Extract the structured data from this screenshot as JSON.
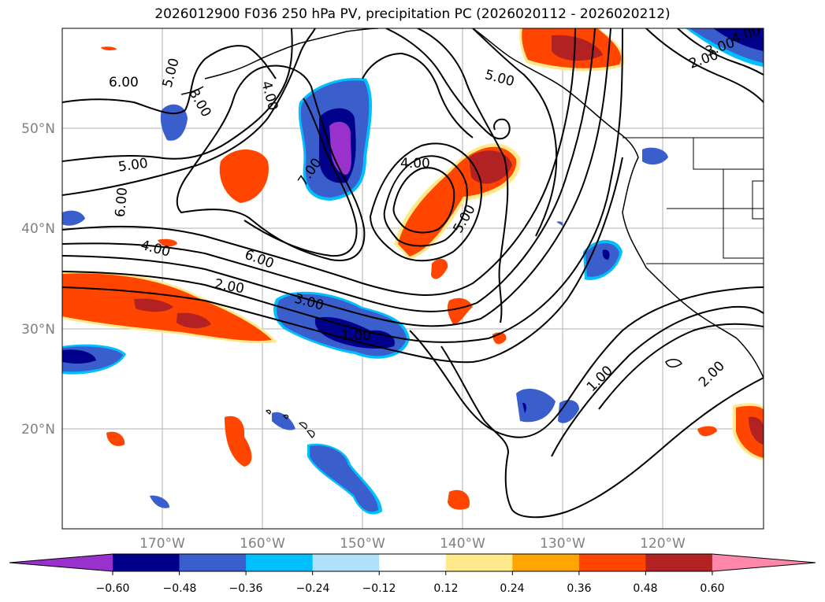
{
  "title": "2026012900 F036 250 hPa PV, precipitation PC (2026020112 - 2026020212)",
  "map": {
    "lat_labels": [
      "50°N",
      "40°N",
      "30°N",
      "20°N"
    ],
    "lon_labels": [
      "170°W",
      "160°W",
      "150°W",
      "140°W",
      "130°W",
      "120°W"
    ]
  },
  "contour_labels": [
    "6.00",
    "5.00",
    "8.00",
    "4.00",
    "5.00",
    "7.00",
    "4.00",
    "5.00",
    "6.00",
    "4.00",
    "6.00",
    "2.00",
    "3.00",
    "1.00",
    "5.00",
    "2.00",
    "3.00",
    "4.00",
    "1.00",
    "2.00"
  ],
  "colorbar": {
    "ticks": [
      "−0.60",
      "−0.48",
      "−0.36",
      "−0.24",
      "−0.12",
      "0.12",
      "0.24",
      "0.36",
      "0.48",
      "0.60"
    ],
    "colors": [
      "#9932cc",
      "#00008b",
      "#3a5fcd",
      "#00bfff",
      "#b0e0fa",
      "#ffffff",
      "#ffe98a",
      "#ffa500",
      "#ff4500",
      "#b22222",
      "#ff88aa"
    ]
  }
}
